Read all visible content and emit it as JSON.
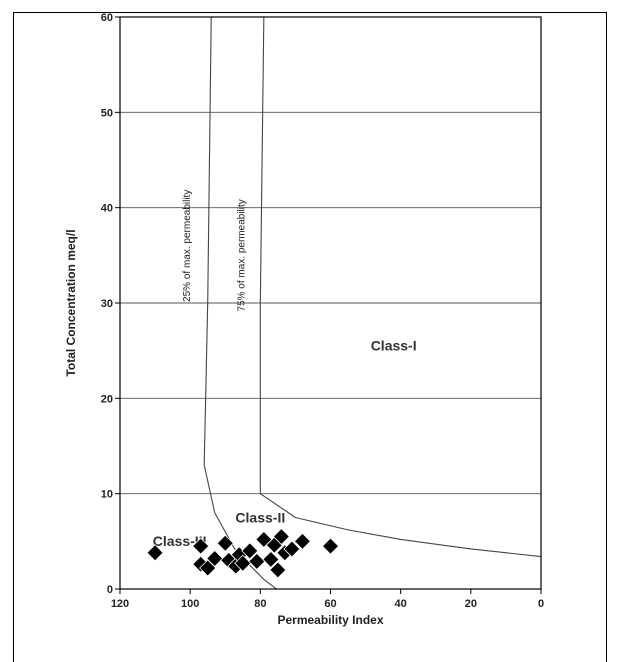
{
  "chart_data": {
    "type": "scatter",
    "title": "",
    "xlabel": "Permeability Index",
    "ylabel": "Total Concentration meq/l",
    "xlim": [
      120,
      0
    ],
    "ylim": [
      0,
      60
    ],
    "x_reversed": true,
    "xticks": [
      120,
      100,
      80,
      60,
      40,
      20,
      0
    ],
    "yticks": [
      0,
      10,
      20,
      30,
      40,
      50,
      60
    ],
    "grid": "horizontal",
    "marker": "diamond",
    "marker_color": "#000000",
    "points": [
      {
        "x": 110,
        "y": 3.8
      },
      {
        "x": 97,
        "y": 4.5
      },
      {
        "x": 97,
        "y": 2.6
      },
      {
        "x": 95,
        "y": 2.2
      },
      {
        "x": 93,
        "y": 3.2
      },
      {
        "x": 90,
        "y": 4.8
      },
      {
        "x": 89,
        "y": 3.0
      },
      {
        "x": 87,
        "y": 2.4
      },
      {
        "x": 86,
        "y": 3.6
      },
      {
        "x": 85,
        "y": 2.7
      },
      {
        "x": 83,
        "y": 4.0
      },
      {
        "x": 81,
        "y": 2.9
      },
      {
        "x": 79,
        "y": 5.2
      },
      {
        "x": 77,
        "y": 3.1
      },
      {
        "x": 76,
        "y": 4.6
      },
      {
        "x": 75,
        "y": 2.0
      },
      {
        "x": 74,
        "y": 5.5
      },
      {
        "x": 73,
        "y": 3.8
      },
      {
        "x": 71,
        "y": 4.2
      },
      {
        "x": 68,
        "y": 5.0
      },
      {
        "x": 60,
        "y": 4.5
      }
    ],
    "boundary_curves": [
      {
        "name": "25% of max. permeability",
        "points": [
          [
            94,
            60
          ],
          [
            95,
            30
          ],
          [
            96,
            13
          ],
          [
            93,
            8
          ],
          [
            87,
            4
          ],
          [
            79,
            1
          ],
          [
            70,
            -1.5
          ]
        ]
      },
      {
        "name": "75% of max. permeability",
        "points": [
          [
            79,
            60
          ],
          [
            80,
            30
          ],
          [
            80,
            10
          ],
          [
            70,
            7.5
          ],
          [
            55,
            6.2
          ],
          [
            40,
            5.2
          ],
          [
            20,
            4.2
          ],
          [
            0,
            3.4
          ]
        ]
      }
    ],
    "region_labels": [
      {
        "text": "Class-I",
        "x": 42,
        "y": 25
      },
      {
        "text": "Class-II",
        "x": 80,
        "y": 7
      },
      {
        "text": "Class-III",
        "x": 103,
        "y": 4.5
      }
    ]
  }
}
